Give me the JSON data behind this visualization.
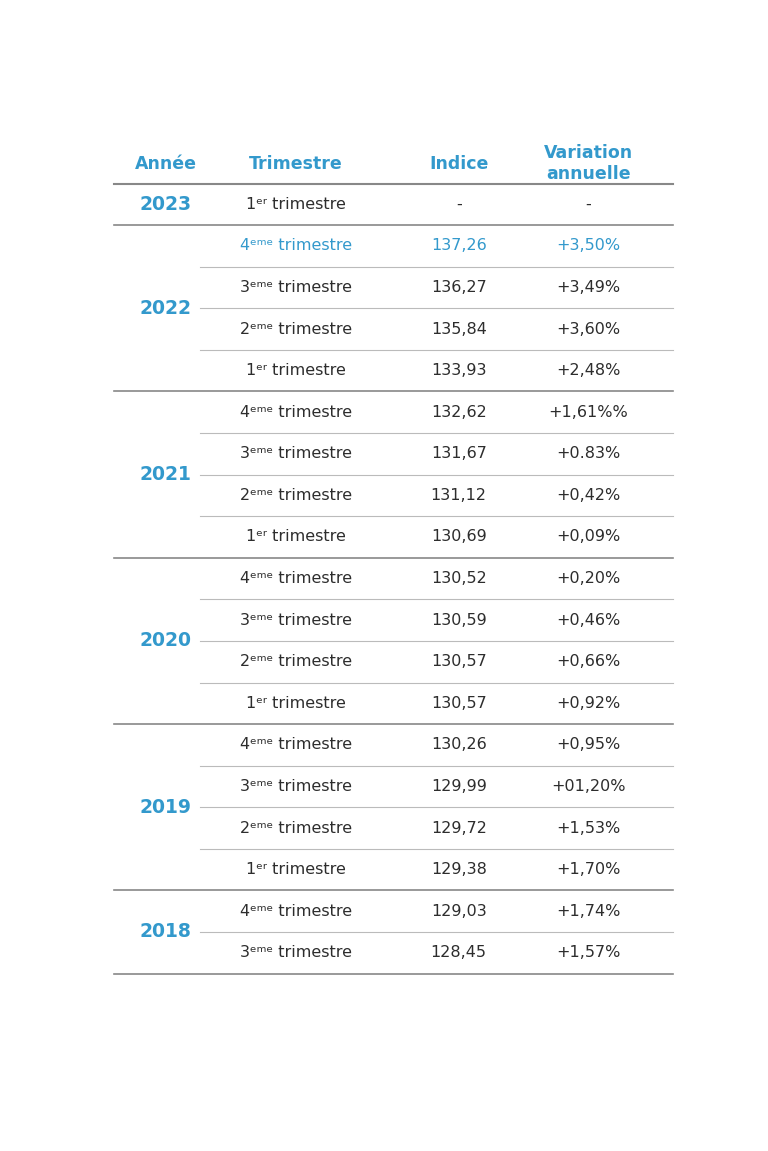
{
  "header": [
    "Année",
    "Trimestre",
    "Indice",
    "Variation\nannuelle"
  ],
  "rows": [
    {
      "annee": "2023",
      "trimestre": "1ᵉʳ trimestre",
      "indice": "-",
      "variation": "-",
      "highlight": false
    },
    {
      "annee": "2022",
      "trimestre": "4ᵉᵐᵉ trimestre",
      "indice": "137,26",
      "variation": "+3,50%",
      "highlight": true
    },
    {
      "annee": "2022",
      "trimestre": "3ᵉᵐᵉ trimestre",
      "indice": "136,27",
      "variation": "+3,49%",
      "highlight": false
    },
    {
      "annee": "2022",
      "trimestre": "2ᵉᵐᵉ trimestre",
      "indice": "135,84",
      "variation": "+3,60%",
      "highlight": false
    },
    {
      "annee": "2022",
      "trimestre": "1ᵉʳ trimestre",
      "indice": "133,93",
      "variation": "+2,48%",
      "highlight": false
    },
    {
      "annee": "2021",
      "trimestre": "4ᵉᵐᵉ trimestre",
      "indice": "132,62",
      "variation": "+1,61%%",
      "highlight": false
    },
    {
      "annee": "2021",
      "trimestre": "3ᵉᵐᵉ trimestre",
      "indice": "131,67",
      "variation": "+0.83%",
      "highlight": false
    },
    {
      "annee": "2021",
      "trimestre": "2ᵉᵐᵉ trimestre",
      "indice": "131,12",
      "variation": "+0,42%",
      "highlight": false
    },
    {
      "annee": "2021",
      "trimestre": "1ᵉʳ trimestre",
      "indice": "130,69",
      "variation": "+0,09%",
      "highlight": false
    },
    {
      "annee": "2020",
      "trimestre": "4ᵉᵐᵉ trimestre",
      "indice": "130,52",
      "variation": "+0,20%",
      "highlight": false
    },
    {
      "annee": "2020",
      "trimestre": "3ᵉᵐᵉ trimestre",
      "indice": "130,59",
      "variation": "+0,46%",
      "highlight": false
    },
    {
      "annee": "2020",
      "trimestre": "2ᵉᵐᵉ trimestre",
      "indice": "130,57",
      "variation": "+0,66%",
      "highlight": false
    },
    {
      "annee": "2020",
      "trimestre": "1ᵉʳ trimestre",
      "indice": "130,57",
      "variation": "+0,92%",
      "highlight": false
    },
    {
      "annee": "2019",
      "trimestre": "4ᵉᵐᵉ trimestre",
      "indice": "130,26",
      "variation": "+0,95%",
      "highlight": false
    },
    {
      "annee": "2019",
      "trimestre": "3ᵉᵐᵉ trimestre",
      "indice": "129,99",
      "variation": "+01,20%",
      "highlight": false
    },
    {
      "annee": "2019",
      "trimestre": "2ᵉᵐᵉ trimestre",
      "indice": "129,72",
      "variation": "+1,53%",
      "highlight": false
    },
    {
      "annee": "2019",
      "trimestre": "1ᵉʳ trimestre",
      "indice": "129,38",
      "variation": "+1,70%",
      "highlight": false
    },
    {
      "annee": "2018",
      "trimestre": "4ᵉᵐᵉ trimestre",
      "indice": "129,03",
      "variation": "+1,74%",
      "highlight": false
    },
    {
      "annee": "2018",
      "trimestre": "3ᵉᵐᵉ trimestre",
      "indice": "128,45",
      "variation": "+1,57%",
      "highlight": false
    }
  ],
  "blue_color": "#3399CC",
  "dark_text": "#2d2d2d",
  "line_color": "#BBBBBB",
  "thick_line_color": "#888888",
  "bg_color": "#FFFFFF",
  "header_fontsize": 12.5,
  "data_fontsize": 11.5,
  "year_fontsize": 13.5
}
